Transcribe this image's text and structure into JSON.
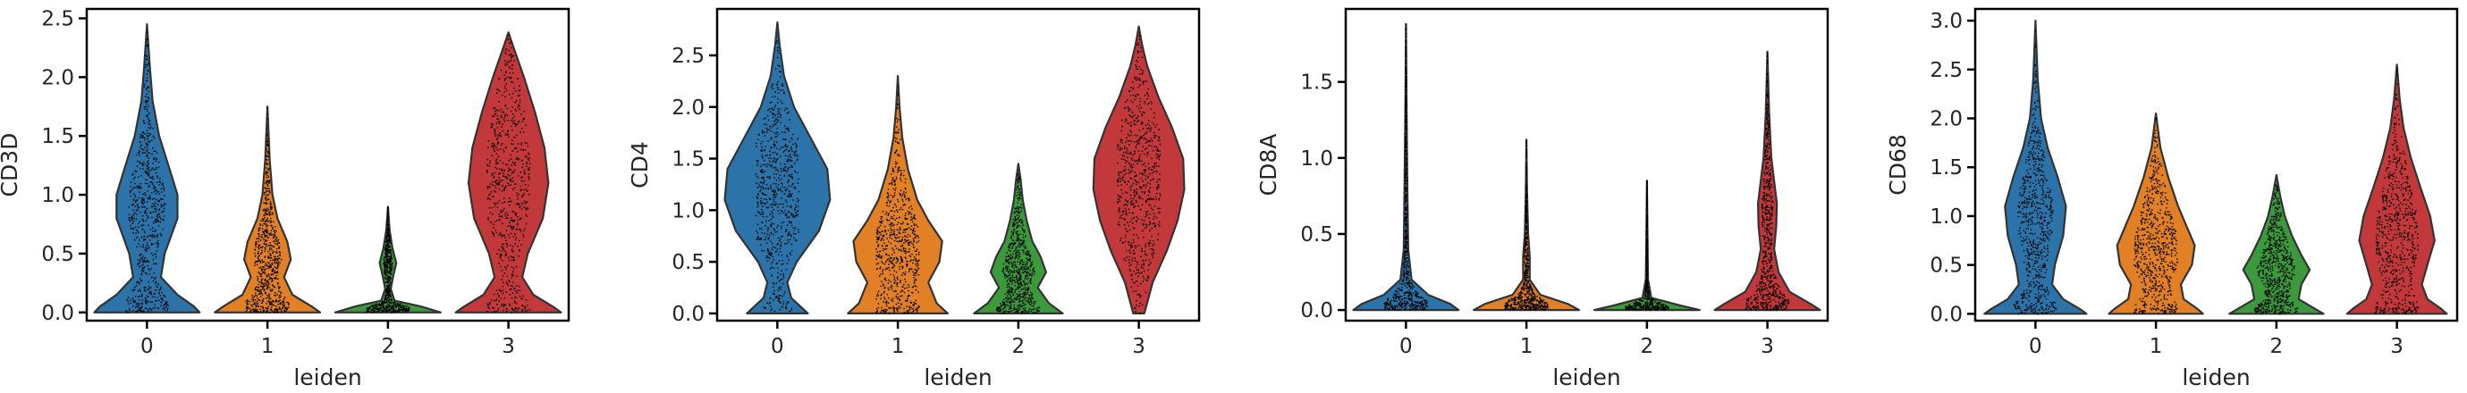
{
  "chart_data": [
    {
      "type": "violin",
      "gene": "CD3D",
      "ylabel": "CD3D",
      "xlabel": "leiden",
      "ylim": [
        -0.07,
        2.58
      ],
      "yticks": [
        0.0,
        0.5,
        1.0,
        1.5,
        2.0,
        2.5
      ],
      "ytick_labels": [
        "0.0",
        "0.5",
        "1.0",
        "1.5",
        "2.0",
        "2.5"
      ],
      "categories": [
        "0",
        "1",
        "2",
        "3"
      ],
      "violins": [
        {
          "max": 2.45,
          "profile": [
            [
              0.0,
              0.95
            ],
            [
              0.05,
              0.85
            ],
            [
              0.15,
              0.55
            ],
            [
              0.3,
              0.25
            ],
            [
              0.5,
              0.32
            ],
            [
              0.8,
              0.55
            ],
            [
              1.0,
              0.55
            ],
            [
              1.2,
              0.42
            ],
            [
              1.5,
              0.22
            ],
            [
              1.8,
              0.1
            ],
            [
              2.1,
              0.05
            ],
            [
              2.45,
              0.0
            ]
          ]
        },
        {
          "max": 1.75,
          "profile": [
            [
              0.0,
              0.95
            ],
            [
              0.05,
              0.8
            ],
            [
              0.15,
              0.45
            ],
            [
              0.3,
              0.3
            ],
            [
              0.45,
              0.42
            ],
            [
              0.6,
              0.36
            ],
            [
              0.8,
              0.18
            ],
            [
              1.0,
              0.09
            ],
            [
              1.3,
              0.04
            ],
            [
              1.75,
              0.0
            ]
          ]
        },
        {
          "max": 0.9,
          "profile": [
            [
              0.0,
              0.95
            ],
            [
              0.05,
              0.6
            ],
            [
              0.1,
              0.12
            ],
            [
              0.2,
              0.05
            ],
            [
              0.32,
              0.1
            ],
            [
              0.42,
              0.15
            ],
            [
              0.55,
              0.08
            ],
            [
              0.7,
              0.03
            ],
            [
              0.9,
              0.0
            ]
          ]
        },
        {
          "max": 2.38,
          "profile": [
            [
              0.0,
              0.95
            ],
            [
              0.05,
              0.8
            ],
            [
              0.15,
              0.45
            ],
            [
              0.3,
              0.25
            ],
            [
              0.5,
              0.35
            ],
            [
              0.8,
              0.62
            ],
            [
              1.1,
              0.72
            ],
            [
              1.4,
              0.65
            ],
            [
              1.7,
              0.48
            ],
            [
              2.0,
              0.28
            ],
            [
              2.2,
              0.13
            ],
            [
              2.38,
              0.0
            ]
          ]
        }
      ]
    },
    {
      "type": "violin",
      "gene": "CD4",
      "ylabel": "CD4",
      "xlabel": "leiden",
      "ylim": [
        -0.07,
        2.95
      ],
      "yticks": [
        0.0,
        0.5,
        1.0,
        1.5,
        2.0,
        2.5
      ],
      "ytick_labels": [
        "0.0",
        "0.5",
        "1.0",
        "1.5",
        "2.0",
        "2.5"
      ],
      "categories": [
        "0",
        "1",
        "2",
        "3"
      ],
      "violins": [
        {
          "max": 2.82,
          "profile": [
            [
              0.0,
              0.55
            ],
            [
              0.05,
              0.45
            ],
            [
              0.15,
              0.25
            ],
            [
              0.3,
              0.18
            ],
            [
              0.5,
              0.35
            ],
            [
              0.8,
              0.75
            ],
            [
              1.1,
              0.95
            ],
            [
              1.4,
              0.9
            ],
            [
              1.7,
              0.6
            ],
            [
              2.0,
              0.3
            ],
            [
              2.3,
              0.12
            ],
            [
              2.6,
              0.04
            ],
            [
              2.82,
              0.0
            ]
          ]
        },
        {
          "max": 2.3,
          "profile": [
            [
              0.0,
              0.9
            ],
            [
              0.1,
              0.7
            ],
            [
              0.3,
              0.55
            ],
            [
              0.5,
              0.75
            ],
            [
              0.7,
              0.8
            ],
            [
              0.9,
              0.55
            ],
            [
              1.1,
              0.35
            ],
            [
              1.4,
              0.18
            ],
            [
              1.7,
              0.08
            ],
            [
              2.0,
              0.03
            ],
            [
              2.3,
              0.0
            ]
          ]
        },
        {
          "max": 1.45,
          "profile": [
            [
              0.0,
              0.8
            ],
            [
              0.1,
              0.55
            ],
            [
              0.25,
              0.35
            ],
            [
              0.4,
              0.5
            ],
            [
              0.55,
              0.4
            ],
            [
              0.7,
              0.25
            ],
            [
              0.9,
              0.15
            ],
            [
              1.1,
              0.08
            ],
            [
              1.3,
              0.04
            ],
            [
              1.45,
              0.0
            ]
          ]
        },
        {
          "max": 2.78,
          "profile": [
            [
              0.0,
              0.1
            ],
            [
              0.1,
              0.15
            ],
            [
              0.3,
              0.25
            ],
            [
              0.6,
              0.5
            ],
            [
              0.9,
              0.7
            ],
            [
              1.2,
              0.82
            ],
            [
              1.5,
              0.8
            ],
            [
              1.8,
              0.6
            ],
            [
              2.1,
              0.35
            ],
            [
              2.4,
              0.15
            ],
            [
              2.6,
              0.06
            ],
            [
              2.78,
              0.0
            ]
          ]
        }
      ]
    },
    {
      "type": "violin",
      "gene": "CD8A",
      "ylabel": "CD8A",
      "xlabel": "leiden",
      "ylim": [
        -0.07,
        1.98
      ],
      "yticks": [
        0.0,
        0.5,
        1.0,
        1.5
      ],
      "ytick_labels": [
        "0.0",
        "0.5",
        "1.0",
        "1.5"
      ],
      "categories": [
        "0",
        "1",
        "2",
        "3"
      ],
      "violins": [
        {
          "max": 1.88,
          "profile": [
            [
              0.0,
              0.95
            ],
            [
              0.04,
              0.8
            ],
            [
              0.1,
              0.4
            ],
            [
              0.2,
              0.1
            ],
            [
              0.4,
              0.04
            ],
            [
              0.7,
              0.03
            ],
            [
              1.0,
              0.02
            ],
            [
              1.4,
              0.01
            ],
            [
              1.88,
              0.0
            ]
          ]
        },
        {
          "max": 1.12,
          "profile": [
            [
              0.0,
              0.95
            ],
            [
              0.04,
              0.75
            ],
            [
              0.1,
              0.25
            ],
            [
              0.2,
              0.06
            ],
            [
              0.35,
              0.06
            ],
            [
              0.5,
              0.03
            ],
            [
              0.8,
              0.01
            ],
            [
              1.12,
              0.0
            ]
          ]
        },
        {
          "max": 0.85,
          "profile": [
            [
              0.0,
              0.95
            ],
            [
              0.03,
              0.6
            ],
            [
              0.08,
              0.08
            ],
            [
              0.2,
              0.02
            ],
            [
              0.5,
              0.01
            ],
            [
              0.85,
              0.0
            ]
          ]
        },
        {
          "max": 1.7,
          "profile": [
            [
              0.0,
              0.95
            ],
            [
              0.04,
              0.78
            ],
            [
              0.12,
              0.4
            ],
            [
              0.25,
              0.2
            ],
            [
              0.4,
              0.12
            ],
            [
              0.55,
              0.16
            ],
            [
              0.7,
              0.17
            ],
            [
              0.85,
              0.12
            ],
            [
              1.0,
              0.07
            ],
            [
              1.3,
              0.03
            ],
            [
              1.7,
              0.0
            ]
          ]
        }
      ]
    },
    {
      "type": "violin",
      "gene": "CD68",
      "ylabel": "CD68",
      "xlabel": "leiden",
      "ylim": [
        -0.07,
        3.12
      ],
      "yticks": [
        0.0,
        0.5,
        1.0,
        1.5,
        2.0,
        2.5,
        3.0
      ],
      "ytick_labels": [
        "0.0",
        "0.5",
        "1.0",
        "1.5",
        "2.0",
        "2.5",
        "3.0"
      ],
      "categories": [
        "0",
        "1",
        "2",
        "3"
      ],
      "violins": [
        {
          "max": 3.0,
          "profile": [
            [
              0.0,
              0.92
            ],
            [
              0.05,
              0.8
            ],
            [
              0.15,
              0.5
            ],
            [
              0.3,
              0.3
            ],
            [
              0.5,
              0.35
            ],
            [
              0.8,
              0.5
            ],
            [
              1.1,
              0.55
            ],
            [
              1.4,
              0.4
            ],
            [
              1.7,
              0.22
            ],
            [
              2.0,
              0.1
            ],
            [
              2.4,
              0.04
            ],
            [
              3.0,
              0.0
            ]
          ]
        },
        {
          "max": 2.05,
          "profile": [
            [
              0.0,
              0.85
            ],
            [
              0.05,
              0.75
            ],
            [
              0.15,
              0.5
            ],
            [
              0.3,
              0.45
            ],
            [
              0.5,
              0.65
            ],
            [
              0.7,
              0.7
            ],
            [
              0.9,
              0.55
            ],
            [
              1.1,
              0.4
            ],
            [
              1.4,
              0.22
            ],
            [
              1.7,
              0.08
            ],
            [
              2.05,
              0.0
            ]
          ]
        },
        {
          "max": 1.42,
          "profile": [
            [
              0.0,
              0.85
            ],
            [
              0.05,
              0.7
            ],
            [
              0.15,
              0.4
            ],
            [
              0.3,
              0.45
            ],
            [
              0.45,
              0.6
            ],
            [
              0.6,
              0.45
            ],
            [
              0.8,
              0.28
            ],
            [
              1.0,
              0.15
            ],
            [
              1.2,
              0.07
            ],
            [
              1.42,
              0.0
            ]
          ]
        },
        {
          "max": 2.55,
          "profile": [
            [
              0.0,
              0.9
            ],
            [
              0.05,
              0.8
            ],
            [
              0.15,
              0.55
            ],
            [
              0.3,
              0.45
            ],
            [
              0.5,
              0.55
            ],
            [
              0.75,
              0.68
            ],
            [
              1.0,
              0.6
            ],
            [
              1.3,
              0.42
            ],
            [
              1.6,
              0.25
            ],
            [
              1.9,
              0.12
            ],
            [
              2.2,
              0.05
            ],
            [
              2.55,
              0.0
            ]
          ]
        }
      ]
    }
  ],
  "colors": {
    "cluster_0": "#2b73a8",
    "cluster_1": "#e28026",
    "cluster_2": "#3c9a3c",
    "cluster_3": "#c3393b",
    "outline": "#333333",
    "points": "#000000"
  }
}
